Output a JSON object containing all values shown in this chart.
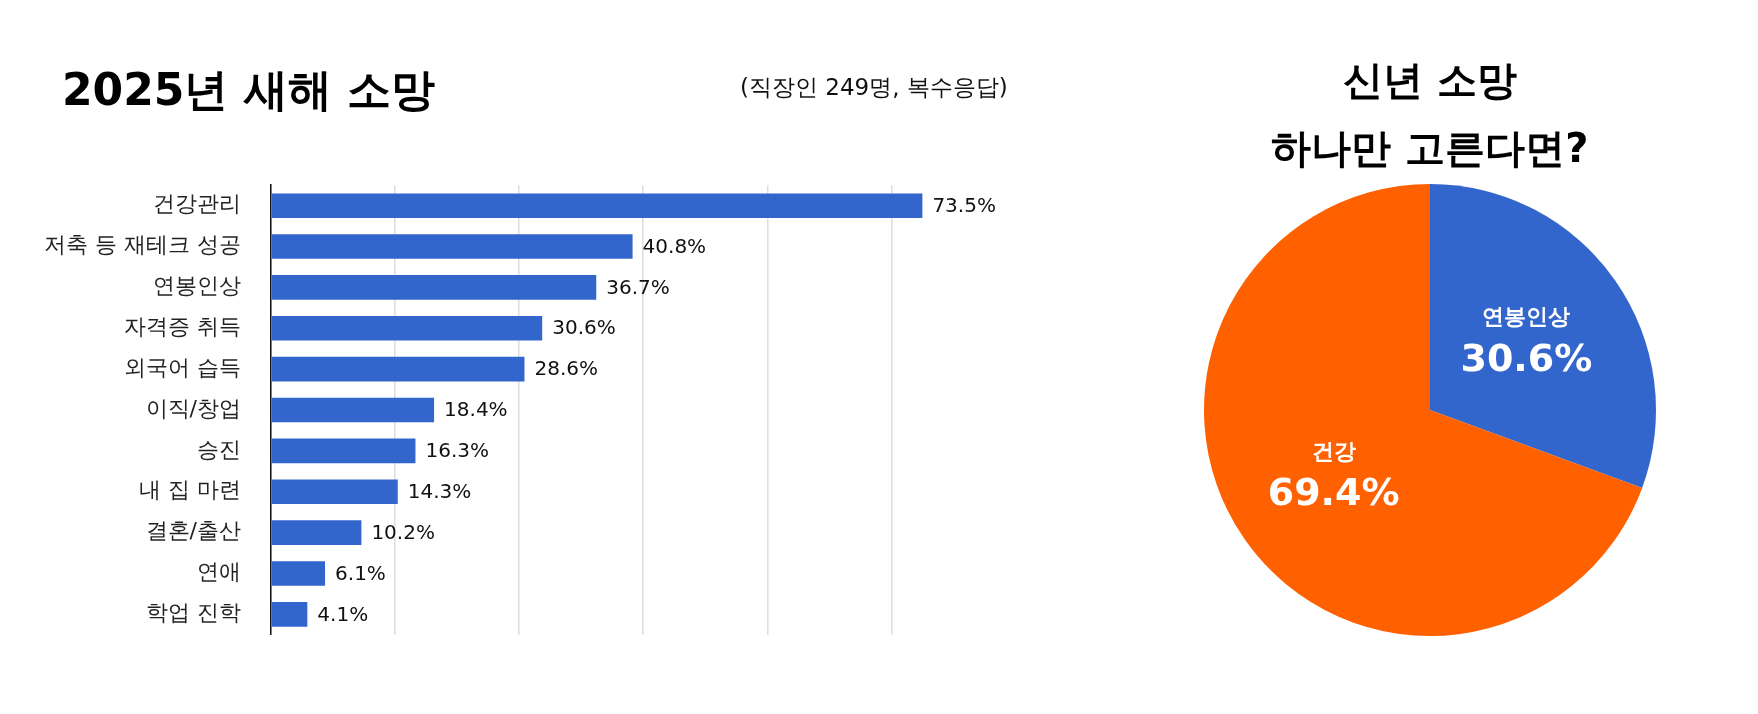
{
  "chart_data": [
    {
      "type": "bar",
      "orientation": "horizontal",
      "title": "2025년 새해 소망",
      "subtitle": "(직장인 249명, 복수응답)",
      "categories": [
        "건강관리",
        "저축 등 재테크 성공",
        "연봉인상",
        "자격증 취득",
        "외국어 습득",
        "이직/창업",
        "승진",
        "내 집 마련",
        "결혼/출산",
        "연애",
        "학업 진학"
      ],
      "values": [
        73.5,
        40.8,
        36.7,
        30.6,
        28.6,
        18.4,
        16.3,
        14.3,
        10.2,
        6.1,
        4.1
      ],
      "color": "#3366cc",
      "value_labels": [
        "73.5%",
        "40.8%",
        "36.7%",
        "30.6%",
        "28.6%",
        "18.4%",
        "16.3%",
        "14.3%",
        "10.2%",
        "6.1%",
        "4.1%"
      ],
      "xticks": [
        {
          "value": 0,
          "label": null
        },
        {
          "value": 14,
          "label": null
        },
        {
          "value": 28,
          "label": null
        },
        {
          "value": 42,
          "label": null
        },
        {
          "value": 56,
          "label": null
        },
        {
          "value": 70,
          "label": null
        }
      ],
      "grid": "x",
      "tick_labels": "y"
    },
    {
      "type": "pie",
      "title": "신년 소망\n하나만 고른다면?",
      "categories": [
        "연봉인상",
        "건강"
      ],
      "values": [
        30.6,
        69.4
      ],
      "colors": [
        "#3366cc",
        "#ff6000"
      ],
      "value_labels": [
        "30.6%",
        "69.4%"
      ]
    }
  ]
}
